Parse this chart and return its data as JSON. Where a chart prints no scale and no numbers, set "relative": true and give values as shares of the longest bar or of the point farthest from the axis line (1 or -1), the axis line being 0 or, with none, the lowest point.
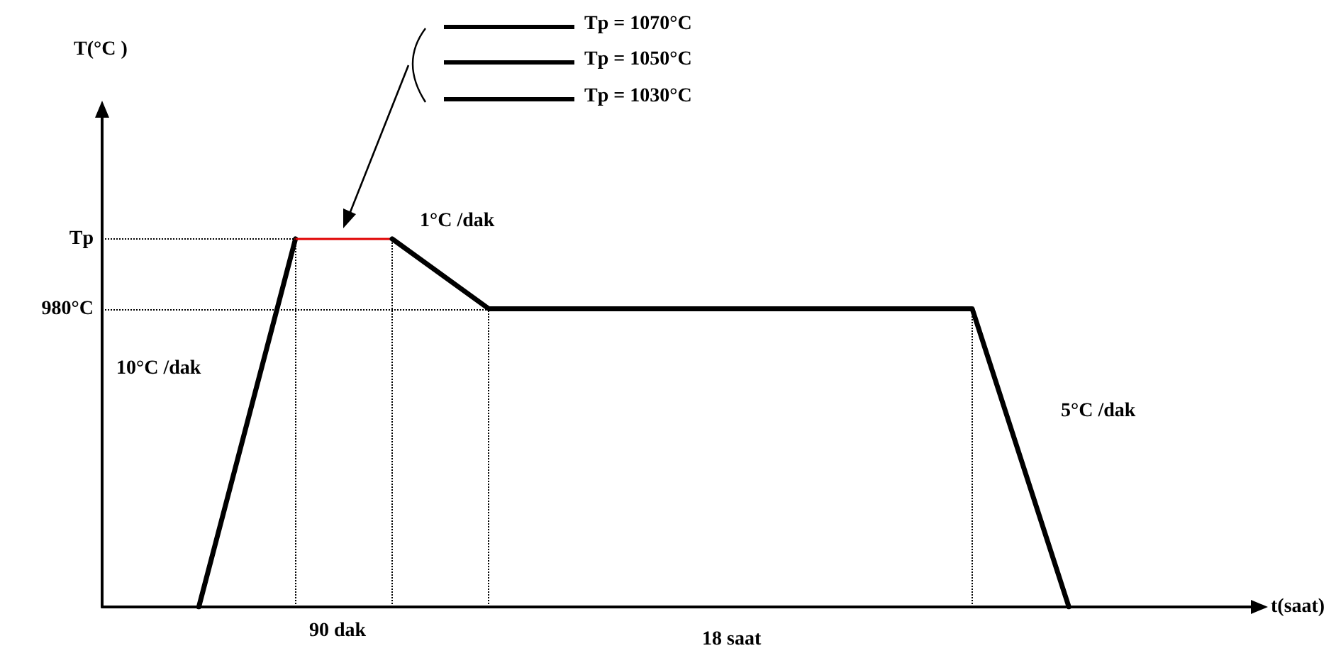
{
  "chart_data": {
    "type": "line",
    "relative": true,
    "xlabel": "t(saat)",
    "categories": [
      null,
      null,
      null,
      null,
      null,
      null,
      null,
      null,
      null,
      null,
      null,
      null,
      null
    ],
    "tick_labels": false,
    "grid": false,
    "marker": "none",
    "line_style": "solid",
    "series": [
      {
        "color": "#000000",
        "values": [
          null,
          0,
          1,
          null,
          null,
          null,
          null,
          null,
          null,
          null,
          null,
          null,
          null
        ]
      },
      {
        "color": "#e00000",
        "values": [
          null,
          null,
          1,
          1,
          null,
          null,
          null,
          null,
          null,
          null,
          null,
          null,
          null
        ]
      },
      {
        "color": "#000000",
        "values": [
          null,
          null,
          null,
          1,
          0.81,
          0.81,
          0.81,
          0.81,
          0.81,
          0.81,
          0,
          null,
          null
        ]
      }
    ],
    "ref_lines": [
      {
        "axis": "y",
        "value": 1,
        "label": "Tp",
        "line_style": "dotted"
      },
      {
        "axis": "y",
        "value": 0.81,
        "label": "980°C",
        "line_style": "dotted"
      }
    ],
    "annotations": [
      "10°C /dak",
      "1°C /dak",
      "5°C /dak",
      "90 dak",
      "18 saat",
      "Tp = 1070°C",
      "Tp = 1050°C",
      "Tp = 1030°C",
      "T(°C )"
    ]
  }
}
